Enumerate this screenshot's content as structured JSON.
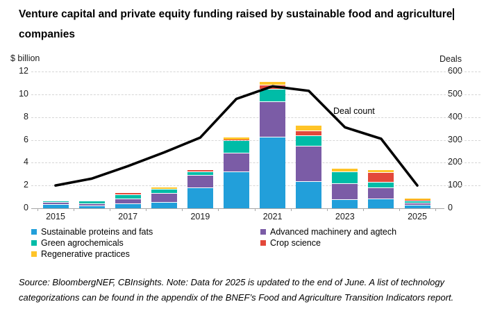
{
  "title": {
    "line1": "Venture capital and private equity funding raised by sustainable food and agriculture",
    "line2": "companies"
  },
  "footer": "Source: BloombergNEF, CBInsights. Note: Data for 2025 is updated to the end of June. A list of technology categorizations can be found in the appendix of the BNEF’s Food and Agriculture Transition Indicators report.",
  "chart_data": {
    "type": "bar",
    "subtype": "stacked-bar-with-line",
    "title": "Venture capital and private equity funding raised by sustainable food and agriculture companies",
    "left_axis": {
      "label": "$ billion",
      "ticks": [
        0,
        2,
        4,
        6,
        8,
        10,
        12
      ],
      "range": [
        0,
        12
      ]
    },
    "right_axis": {
      "label": "Deals",
      "ticks": [
        0,
        100,
        200,
        300,
        400,
        500,
        600
      ],
      "range": [
        0,
        600
      ]
    },
    "categories": [
      "2015",
      "2016",
      "2017",
      "2018",
      "2019",
      "2020",
      "2021",
      "2022",
      "2023",
      "2024",
      "2025"
    ],
    "x_tick_labels": [
      "2015",
      "2017",
      "2019",
      "2021",
      "2023",
      "2025"
    ],
    "grid": true,
    "legend_position": "bottom",
    "series": [
      {
        "name": "Sustainable proteins and fats",
        "color": "#229FDA",
        "values": [
          0.35,
          0.25,
          0.4,
          0.55,
          1.85,
          3.2,
          6.3,
          2.4,
          0.8,
          0.85,
          0.3
        ]
      },
      {
        "name": "Advanced machinery and agtech",
        "color": "#7B5CA6",
        "values": [
          0.18,
          0.15,
          0.45,
          0.8,
          1.1,
          1.7,
          3.1,
          3.1,
          1.4,
          1.0,
          0.17
        ]
      },
      {
        "name": "Green agrochemicals",
        "color": "#00BCA7",
        "values": [
          0.05,
          0.3,
          0.35,
          0.35,
          0.3,
          1.05,
          1.1,
          0.9,
          1.0,
          0.45,
          0.17
        ]
      },
      {
        "name": "Crop science",
        "color": "#E3483A",
        "values": [
          0.0,
          0.0,
          0.15,
          0.0,
          0.1,
          0.05,
          0.35,
          0.45,
          0.0,
          0.85,
          0.08
        ]
      },
      {
        "name": "Regenerative practices",
        "color": "#FFC428",
        "values": [
          0.0,
          0.0,
          0.0,
          0.15,
          0.0,
          0.25,
          0.3,
          0.45,
          0.35,
          0.25,
          0.18
        ]
      }
    ],
    "line": {
      "name": "Deal count",
      "color": "#000000",
      "values": [
        100,
        130,
        185,
        245,
        310,
        480,
        535,
        515,
        355,
        305,
        100
      ]
    },
    "annotation_label": "Deal count",
    "legend_columns": [
      [
        0,
        2,
        4
      ],
      [
        1,
        3
      ]
    ]
  }
}
